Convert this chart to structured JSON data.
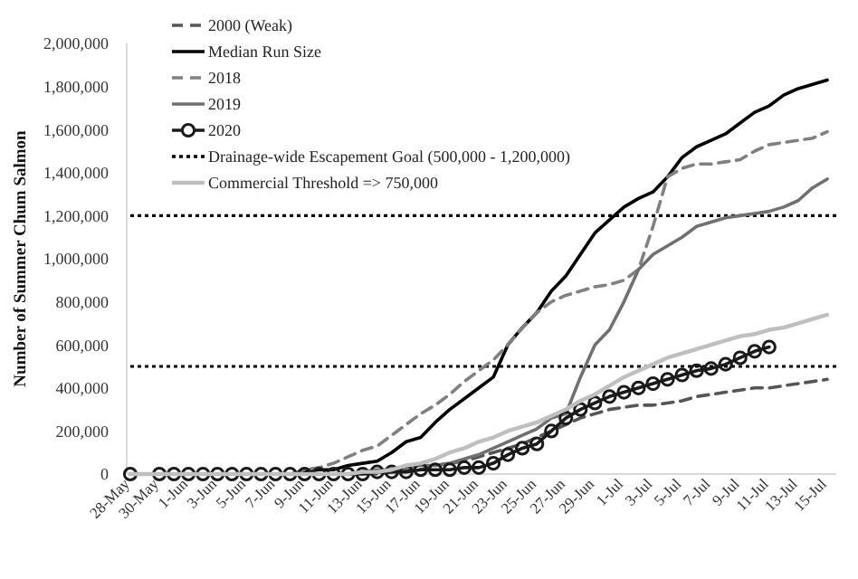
{
  "chart_data": {
    "type": "line",
    "ylabel": "Number of Summer Chum Salmon",
    "categories": [
      "28-May",
      null,
      "30-May",
      null,
      "1-Jun",
      null,
      "3-Jun",
      null,
      "5-Jun",
      null,
      "7-Jun",
      null,
      "9-Jun",
      null,
      "11-Jun",
      null,
      "13-Jun",
      null,
      "15-Jun",
      null,
      "17-Jun",
      null,
      "19-Jun",
      null,
      "21-Jun",
      null,
      "23-Jun",
      null,
      "25-Jun",
      null,
      "27-Jun",
      null,
      "29-Jun",
      null,
      "1-Jul",
      null,
      "3-Jul",
      null,
      "5-Jul",
      null,
      "7-Jul",
      null,
      "9-Jul",
      null,
      "11-Jul",
      null,
      "13-Jul",
      null,
      "15-Jul"
    ],
    "ylim": [
      0,
      2000000
    ],
    "yticks": [
      {
        "value": 0,
        "label": "0"
      },
      {
        "value": 200000,
        "label": "200,000"
      },
      {
        "value": 400000,
        "label": "400,000"
      },
      {
        "value": 600000,
        "label": "600,000"
      },
      {
        "value": 800000,
        "label": "800,000"
      },
      {
        "value": 1000000,
        "label": "1,000,000"
      },
      {
        "value": 1200000,
        "label": "1,200,000"
      },
      {
        "value": 1400000,
        "label": "1,400,000"
      },
      {
        "value": 1600000,
        "label": "1,600,000"
      },
      {
        "value": 1800000,
        "label": "1,800,000"
      },
      {
        "value": 2000000,
        "label": "2,000,000"
      }
    ],
    "legend": "top left",
    "grid": false,
    "series": [
      {
        "name": "2000 (Weak)",
        "color": "#555555",
        "line_style": "dashed",
        "values": [
          0,
          0,
          0,
          0,
          0,
          0,
          0,
          0,
          0,
          0,
          0,
          0,
          0,
          0,
          0,
          0,
          0,
          0,
          10000,
          20000,
          20000,
          40000,
          50000,
          60000,
          80000,
          100000,
          120000,
          140000,
          170000,
          200000,
          230000,
          260000,
          280000,
          300000,
          310000,
          320000,
          320000,
          330000,
          340000,
          360000,
          370000,
          380000,
          390000,
          400000,
          400000,
          410000,
          420000,
          430000,
          440000
        ]
      },
      {
        "name": "Median Run Size",
        "color": "#000000",
        "line_style": "solid",
        "values": [
          0,
          0,
          0,
          0,
          0,
          0,
          0,
          0,
          0,
          0,
          0,
          0,
          10000,
          20000,
          20000,
          40000,
          50000,
          60000,
          100000,
          150000,
          170000,
          240000,
          300000,
          350000,
          400000,
          450000,
          600000,
          680000,
          750000,
          850000,
          920000,
          1020000,
          1120000,
          1180000,
          1240000,
          1280000,
          1310000,
          1380000,
          1470000,
          1520000,
          1550000,
          1580000,
          1630000,
          1680000,
          1710000,
          1760000,
          1790000,
          1810000,
          1830000
        ]
      },
      {
        "name": "2018",
        "color": "#808080",
        "line_style": "dashed",
        "values": [
          0,
          0,
          0,
          0,
          0,
          0,
          0,
          0,
          0,
          0,
          0,
          0,
          20000,
          30000,
          50000,
          80000,
          110000,
          130000,
          180000,
          230000,
          280000,
          320000,
          370000,
          430000,
          480000,
          530000,
          600000,
          680000,
          750000,
          800000,
          830000,
          850000,
          870000,
          880000,
          900000,
          950000,
          1150000,
          1380000,
          1420000,
          1440000,
          1440000,
          1450000,
          1460000,
          1500000,
          1530000,
          1540000,
          1550000,
          1560000,
          1590000
        ]
      },
      {
        "name": "2019",
        "color": "#707070",
        "line_style": "solid",
        "values": [
          0,
          0,
          0,
          0,
          0,
          0,
          0,
          0,
          0,
          0,
          0,
          0,
          0,
          0,
          0,
          0,
          10000,
          20000,
          20000,
          30000,
          40000,
          40000,
          50000,
          70000,
          90000,
          120000,
          150000,
          180000,
          210000,
          260000,
          280000,
          450000,
          600000,
          670000,
          800000,
          950000,
          1020000,
          1060000,
          1100000,
          1150000,
          1170000,
          1190000,
          1200000,
          1210000,
          1220000,
          1240000,
          1270000,
          1330000,
          1370000
        ]
      },
      {
        "name": "2020",
        "color": "#1a1a1a",
        "line_style": "solid",
        "marker": "circle",
        "values": [
          0,
          null,
          0,
          0,
          0,
          0,
          0,
          0,
          0,
          0,
          0,
          0,
          0,
          0,
          0,
          0,
          0,
          10000,
          10000,
          10000,
          20000,
          20000,
          20000,
          30000,
          30000,
          50000,
          90000,
          120000,
          140000,
          200000,
          260000,
          300000,
          330000,
          360000,
          380000,
          400000,
          420000,
          440000,
          460000,
          480000,
          490000,
          510000,
          540000,
          570000,
          590000,
          null,
          null,
          null,
          null
        ]
      },
      {
        "name": "Commercial Threshold => 750,000",
        "color": "#bfbfbf",
        "line_style": "solid",
        "values": [
          0,
          0,
          0,
          0,
          0,
          0,
          0,
          0,
          0,
          0,
          0,
          0,
          0,
          0,
          0,
          0,
          10000,
          10000,
          20000,
          40000,
          50000,
          70000,
          100000,
          120000,
          150000,
          170000,
          200000,
          220000,
          240000,
          270000,
          300000,
          340000,
          370000,
          410000,
          450000,
          480000,
          510000,
          540000,
          560000,
          580000,
          600000,
          620000,
          640000,
          650000,
          670000,
          680000,
          700000,
          720000,
          740000
        ]
      }
    ],
    "ref_lines": [
      {
        "axis": "y",
        "value": 500000,
        "label": "Drainage-wide Escapement Goal (500,000 - 1,200,000)",
        "color": "#000000",
        "line_style": "dotted"
      },
      {
        "axis": "y",
        "value": 1200000,
        "label": null,
        "color": "#000000",
        "line_style": "dotted"
      }
    ]
  }
}
